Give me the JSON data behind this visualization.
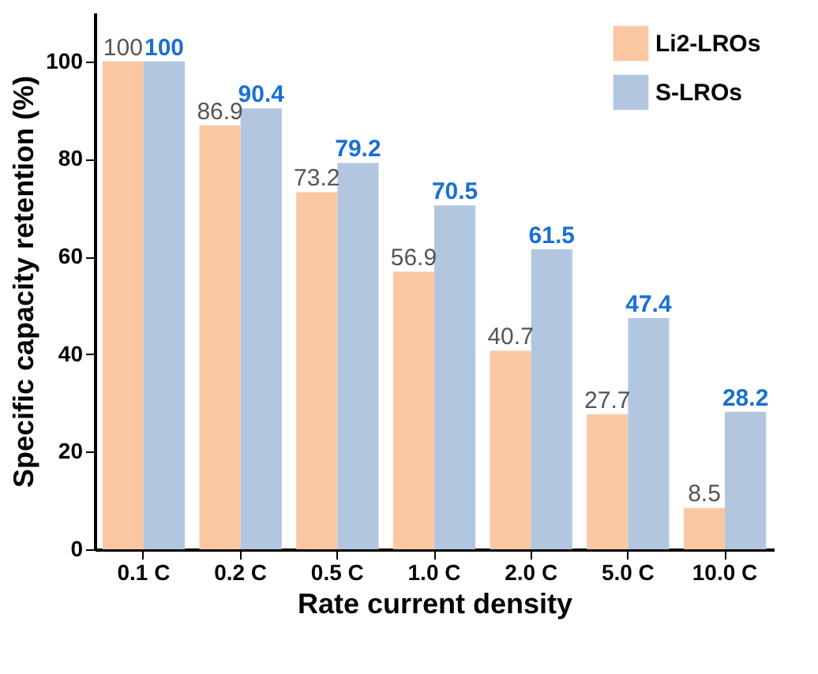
{
  "chart_data": {
    "type": "bar",
    "xlabel": "Rate current density",
    "ylabel": "Specific capacity retention (%)",
    "categories": [
      "0.1 C",
      "0.2 C",
      "0.5 C",
      "1.0 C",
      "2.0 C",
      "5.0 C",
      "10.0 C"
    ],
    "series": [
      {
        "name": "Li2-LROs",
        "color": "#f9c8a3",
        "values": [
          100,
          86.9,
          73.2,
          56.9,
          40.7,
          27.7,
          8.5
        ]
      },
      {
        "name": "S-LROs",
        "color": "#b3c6e0",
        "values": [
          100,
          90.4,
          79.2,
          70.5,
          61.5,
          47.4,
          28.2
        ]
      }
    ],
    "ylim": [
      0,
      110
    ],
    "yticks": [
      0,
      20,
      40,
      60,
      80,
      100
    ],
    "data_labels": true,
    "legend": "top right",
    "grid": false
  }
}
